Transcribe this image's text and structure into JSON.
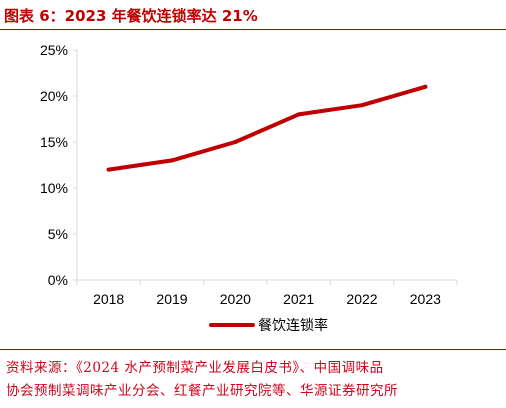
{
  "figure": {
    "label": "图表 6：",
    "title": "2023 年餐饮连锁率达 21%"
  },
  "source": {
    "line1": "资料来源：《2024 水产预制菜产业发展白皮书》、中国调味品",
    "line2": "协会预制菜调味产业分会、红餐产业研究院等、华源证券研究所"
  },
  "colors": {
    "accent": "#c00000",
    "series": "#c00000",
    "axis": "#d9d9d9",
    "text": "#000000"
  },
  "chart_data": {
    "type": "line",
    "x": [
      "2018",
      "2019",
      "2020",
      "2021",
      "2022",
      "2023"
    ],
    "series": [
      {
        "name": "餐饮连锁率",
        "values": [
          12,
          13,
          15,
          18,
          19,
          21
        ]
      }
    ],
    "ylim": [
      0,
      25
    ],
    "yticks": [
      0,
      5,
      10,
      15,
      20,
      25
    ],
    "ytick_labels": [
      "0%",
      "5%",
      "10%",
      "15%",
      "20%",
      "25%"
    ],
    "grid": false,
    "legend": "bottom-center"
  }
}
